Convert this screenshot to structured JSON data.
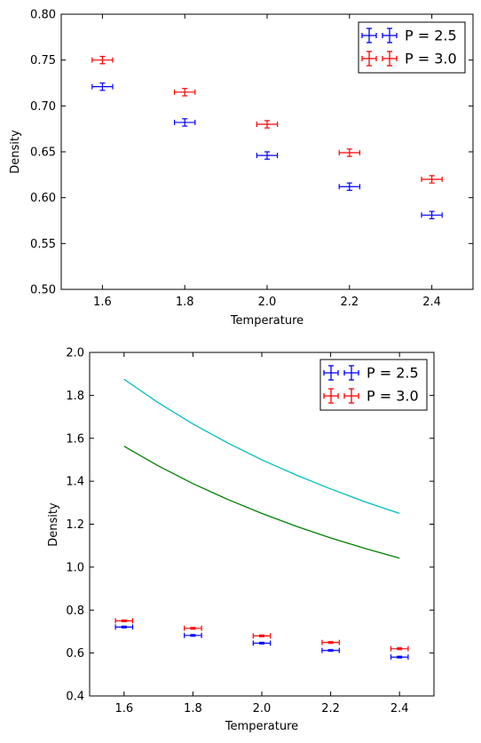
{
  "chart_data": [
    {
      "type": "scatter",
      "xlabel": "Temperature",
      "ylabel": "Density",
      "xlim": [
        1.5,
        2.5
      ],
      "ylim": [
        0.5,
        0.8
      ],
      "xticks": [
        "1.6",
        "1.8",
        "2.0",
        "2.2",
        "2.4"
      ],
      "yticks": [
        "0.50",
        "0.55",
        "0.60",
        "0.65",
        "0.70",
        "0.75",
        "0.80"
      ],
      "legend_position": "top-right",
      "grid": false,
      "series": [
        {
          "name": "P = 2.5",
          "color": "#0000ff",
          "x": [
            1.6,
            1.8,
            2.0,
            2.2,
            2.4
          ],
          "y": [
            0.721,
            0.682,
            0.646,
            0.612,
            0.581
          ],
          "xerr": 0.025,
          "yerr": 0.004
        },
        {
          "name": "P = 3.0",
          "color": "#ff0000",
          "x": [
            1.6,
            1.8,
            2.0,
            2.2,
            2.4
          ],
          "y": [
            0.75,
            0.715,
            0.68,
            0.649,
            0.62
          ],
          "xerr": 0.025,
          "yerr": 0.004
        }
      ]
    },
    {
      "type": "line",
      "xlabel": "Temperature",
      "ylabel": "Density",
      "xlim": [
        1.5,
        2.5
      ],
      "ylim": [
        0.4,
        2.0
      ],
      "xticks": [
        "1.6",
        "1.8",
        "2.0",
        "2.2",
        "2.4"
      ],
      "yticks": [
        "0.4",
        "0.6",
        "0.8",
        "1.0",
        "1.2",
        "1.4",
        "1.6",
        "1.8",
        "2.0"
      ],
      "legend_position": "top-right",
      "grid": false,
      "series": [
        {
          "name": "P = 2.5",
          "color": "#0000ff",
          "x": [
            1.6,
            1.8,
            2.0,
            2.2,
            2.4
          ],
          "y": [
            0.721,
            0.682,
            0.646,
            0.612,
            0.581
          ],
          "xerr": 0.025,
          "yerr": 0.004
        },
        {
          "name": "P = 3.0",
          "color": "#ff0000",
          "x": [
            1.6,
            1.8,
            2.0,
            2.2,
            2.4
          ],
          "y": [
            0.75,
            0.715,
            0.68,
            0.649,
            0.62
          ],
          "xerr": 0.025,
          "yerr": 0.004
        }
      ],
      "curves": [
        {
          "color": "#00bfbf",
          "x": [
            1.6,
            1.7,
            1.8,
            1.9,
            2.0,
            2.1,
            2.2,
            2.3,
            2.4
          ],
          "y": [
            1.875,
            1.765,
            1.667,
            1.579,
            1.5,
            1.429,
            1.364,
            1.304,
            1.25
          ]
        },
        {
          "color": "#008000",
          "x": [
            1.6,
            1.7,
            1.8,
            1.9,
            2.0,
            2.1,
            2.2,
            2.3,
            2.4
          ],
          "y": [
            1.563,
            1.471,
            1.389,
            1.316,
            1.25,
            1.19,
            1.136,
            1.087,
            1.042
          ]
        }
      ]
    }
  ]
}
